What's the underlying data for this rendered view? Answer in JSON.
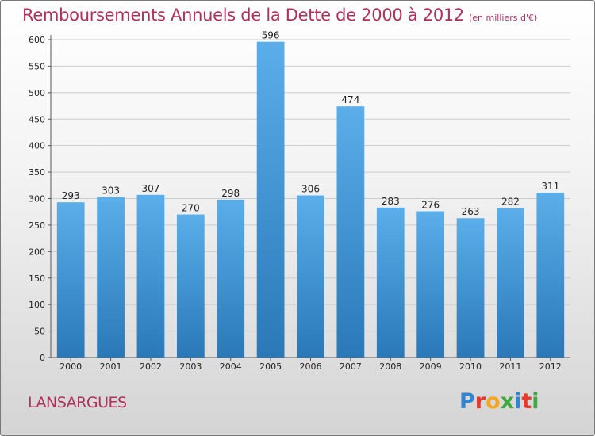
{
  "title": "Remboursements Annuels de la Dette de 2000 à 2012",
  "subtitle": "(en milliers d'€)",
  "commune": "LANSARGUES",
  "logo": {
    "text": "Proxiti",
    "letter_colors": [
      "#2f86d6",
      "#e23b2e",
      "#f5a623",
      "#3daa3d",
      "#2f86d6",
      "#e23b2e",
      "#3daa3d"
    ]
  },
  "colors": {
    "bar_top": "#5aaeea",
    "bar_bottom": "#2a78b8",
    "grid": "#cccccc",
    "title": "#b0305a"
  },
  "chart_data": {
    "type": "bar",
    "categories": [
      "2000",
      "2001",
      "2002",
      "2003",
      "2004",
      "2005",
      "2006",
      "2007",
      "2008",
      "2009",
      "2010",
      "2011",
      "2012"
    ],
    "values": [
      293,
      303,
      307,
      270,
      298,
      596,
      306,
      474,
      283,
      276,
      263,
      282,
      311
    ],
    "title": "Remboursements Annuels de la Dette de 2000 à 2012",
    "xlabel": "",
    "ylabel": "",
    "ylim": [
      0,
      600
    ],
    "yticks": [
      0,
      50,
      100,
      150,
      200,
      250,
      300,
      350,
      400,
      450,
      500,
      550,
      600
    ],
    "grid": true,
    "legend": "none"
  }
}
